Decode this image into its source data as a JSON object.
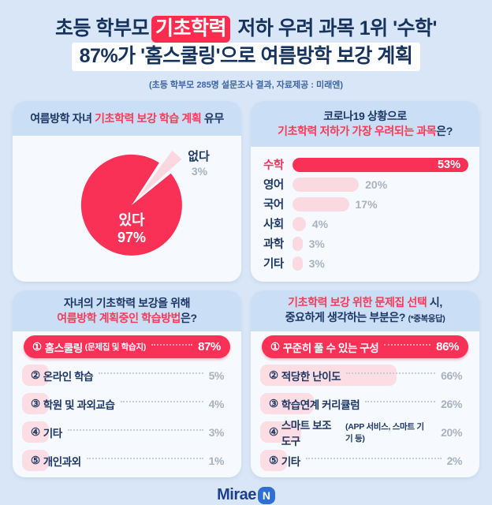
{
  "header": {
    "title_line1_pre": "초등 학부모",
    "title_line1_highlight": "기초학력",
    "title_line1_post": " 저하 우려 과목 1위 '수학'",
    "title_line2": "87%가 '홈스쿨링'으로 여름방학 보강 계획",
    "subtitle": "(초등 학부모 285명 설문조사 결과, 자료제공 : 미래엔)"
  },
  "pie_card": {
    "title_pre": "여름방학 자녀 ",
    "title_red": "기초학력 보강 학습 계획",
    "title_post": " 유무",
    "main_label": "있다",
    "main_pct": "97%",
    "minor_label": "없다",
    "minor_pct": "3%"
  },
  "subject_card": {
    "title_line1": "코로나19 상황으로",
    "title_red": "기초학력 저하가 가장 우려되는 과목",
    "title_post": "은?",
    "rows": [
      {
        "label": "수학",
        "pct": "53%"
      },
      {
        "label": "영어",
        "pct": "20%"
      },
      {
        "label": "국어",
        "pct": "17%"
      },
      {
        "label": "사회",
        "pct": "4%"
      },
      {
        "label": "과학",
        "pct": "3%"
      },
      {
        "label": "기타",
        "pct": "3%"
      }
    ]
  },
  "method_card": {
    "title_line1": "자녀의 기초학력 보강을 위해",
    "title_red": "여름방학 계획중인 학습방법",
    "title_post": "은?",
    "rows": [
      {
        "num": "①",
        "label": "홈스쿨링",
        "sub": "(문제집 및 학습지)",
        "pct": "87%"
      },
      {
        "num": "②",
        "label": "온라인 학습",
        "sub": "",
        "pct": "5%"
      },
      {
        "num": "③",
        "label": "학원 및 과외교습",
        "sub": "",
        "pct": "4%"
      },
      {
        "num": "④",
        "label": "기타",
        "sub": "",
        "pct": "3%"
      },
      {
        "num": "⑤",
        "label": "개인과외",
        "sub": "",
        "pct": "1%"
      }
    ]
  },
  "workbook_card": {
    "title_red": "기초학력 보강 위한 문제집 선택",
    "title_post": " 시,",
    "title_line2": "중요하게 생각하는 부분은? ",
    "title_note": "(*중복응답)",
    "rows": [
      {
        "num": "①",
        "label": "꾸준히 풀 수 있는 구성",
        "sub": "",
        "pct": "86%"
      },
      {
        "num": "②",
        "label": "적당한 난이도",
        "sub": "",
        "pct": "66%"
      },
      {
        "num": "③",
        "label": "학습연계 커리큘럼",
        "sub": "",
        "pct": "26%"
      },
      {
        "num": "④",
        "label": "스마트 보조 도구",
        "sub": "(APP 서비스, 스마트 기기 등)",
        "pct": "20%"
      },
      {
        "num": "⑤",
        "label": "기타",
        "sub": "",
        "pct": "2%"
      }
    ]
  },
  "footer": {
    "logo_text": "Mirae",
    "logo_badge": "N"
  },
  "colors": {
    "page_bg": "#d9e6f7",
    "card_header_blue": "#cadef6",
    "accent_red": "#fa3157",
    "highlight_red": "#fb2d4e",
    "light_pink": "#fbd9e1",
    "navy": "#1c3763",
    "gray_pct": "#a9b2c0",
    "subtitle_blue": "#3c64a6",
    "logo_blue": "#2e6fd3"
  },
  "chart_data": [
    {
      "type": "pie",
      "title": "여름방학 자녀 기초학력 보강 학습 계획 유무",
      "labels": [
        "있다",
        "없다"
      ],
      "values": [
        97,
        3
      ],
      "colors": [
        "#fa3157",
        "#fbd8e0"
      ],
      "exploded_slice": "없다"
    },
    {
      "type": "bar",
      "orientation": "horizontal",
      "title": "코로나19 상황으로 기초학력 저하가 가장 우려되는 과목은?",
      "categories": [
        "수학",
        "영어",
        "국어",
        "사회",
        "과학",
        "기타"
      ],
      "values": [
        53,
        20,
        17,
        4,
        3,
        3
      ],
      "xlim": [
        0,
        53
      ],
      "highlight_category": "수학"
    },
    {
      "type": "bar",
      "orientation": "horizontal",
      "title": "자녀의 기초학력 보강을 위해 여름방학 계획중인 학습방법은?",
      "categories": [
        "홈스쿨링 (문제집 및 학습지)",
        "온라인 학습",
        "학원 및 과외교습",
        "기타",
        "개인과외"
      ],
      "values": [
        87,
        5,
        4,
        3,
        1
      ],
      "highlight_category": "홈스쿨링 (문제집 및 학습지)"
    },
    {
      "type": "bar",
      "orientation": "horizontal",
      "title": "기초학력 보강 위한 문제집 선택 시, 중요하게 생각하는 부분은? (*중복응답)",
      "categories": [
        "꾸준히 풀 수 있는 구성",
        "적당한 난이도",
        "학습연계 커리큘럼",
        "스마트 보조 도구 (APP 서비스, 스마트 기기 등)",
        "기타"
      ],
      "values": [
        86,
        66,
        26,
        20,
        2
      ],
      "highlight_category": "꾸준히 풀 수 있는 구성"
    }
  ]
}
